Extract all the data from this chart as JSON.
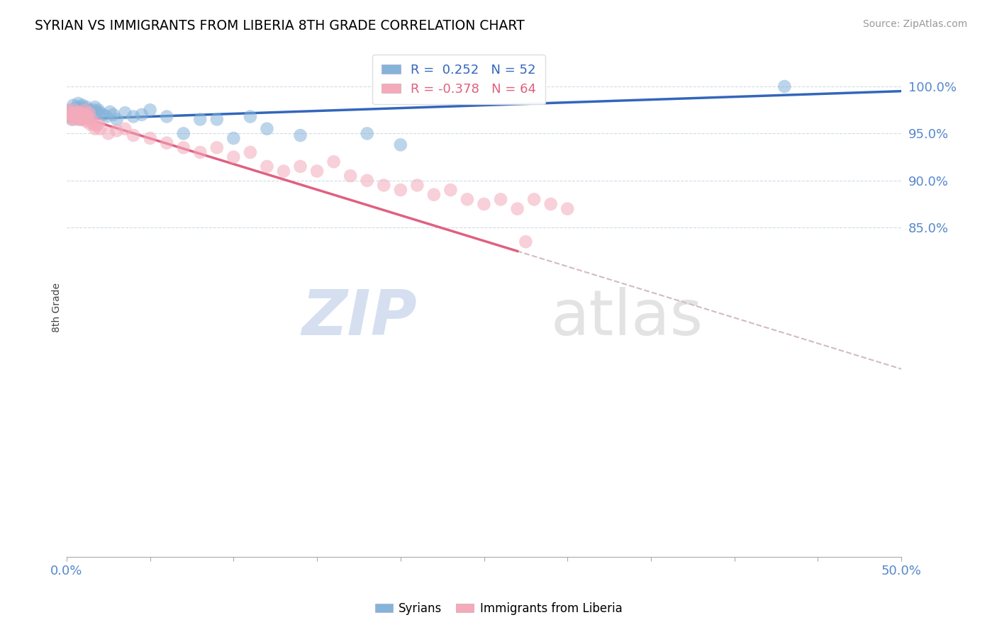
{
  "title": "SYRIAN VS IMMIGRANTS FROM LIBERIA 8TH GRADE CORRELATION CHART",
  "source_text": "Source: ZipAtlas.com",
  "ylabel": "8th Grade",
  "xlim": [
    0.0,
    50.0
  ],
  "ylim": [
    50.0,
    103.0
  ],
  "yticks": [
    85.0,
    90.0,
    95.0,
    100.0
  ],
  "xticks": [
    0.0,
    5.0,
    10.0,
    15.0,
    20.0,
    25.0,
    30.0,
    35.0,
    40.0,
    45.0,
    50.0
  ],
  "legend_R_syrian": "0.252",
  "legend_N_syrian": "52",
  "legend_R_liberia": "-0.378",
  "legend_N_liberia": "64",
  "blue_color": "#85B3D9",
  "pink_color": "#F4AABB",
  "trend_blue_color": "#3366BB",
  "trend_pink_color": "#E06080",
  "trend_gray_color": "#D4BBBB",
  "watermark_zip": "ZIP",
  "watermark_atlas": "atlas",
  "syrian_x": [
    0.15,
    0.2,
    0.25,
    0.3,
    0.35,
    0.4,
    0.45,
    0.5,
    0.55,
    0.6,
    0.65,
    0.7,
    0.75,
    0.8,
    0.85,
    0.9,
    0.95,
    1.0,
    1.05,
    1.1,
    1.15,
    1.2,
    1.25,
    1.3,
    1.35,
    1.4,
    1.5,
    1.6,
    1.7,
    1.8,
    1.9,
    2.0,
    2.2,
    2.4,
    2.6,
    2.8,
    3.0,
    3.5,
    4.0,
    4.5,
    5.0,
    6.0,
    7.0,
    8.0,
    9.0,
    10.0,
    11.0,
    12.0,
    14.0,
    18.0,
    20.0,
    43.0
  ],
  "syrian_y": [
    97.2,
    96.8,
    97.5,
    97.0,
    96.5,
    98.0,
    97.3,
    96.8,
    97.5,
    97.8,
    97.0,
    98.2,
    97.5,
    96.5,
    97.0,
    97.8,
    98.0,
    97.5,
    97.2,
    97.0,
    97.5,
    97.8,
    97.3,
    97.0,
    97.5,
    97.2,
    97.0,
    97.5,
    97.8,
    97.3,
    97.5,
    97.2,
    97.0,
    96.8,
    97.3,
    97.0,
    96.5,
    97.2,
    96.8,
    97.0,
    97.5,
    96.8,
    95.0,
    96.5,
    96.5,
    94.5,
    96.8,
    95.5,
    94.8,
    95.0,
    93.8,
    100.0
  ],
  "liberia_x": [
    0.1,
    0.15,
    0.2,
    0.25,
    0.3,
    0.35,
    0.4,
    0.45,
    0.5,
    0.55,
    0.6,
    0.65,
    0.7,
    0.75,
    0.8,
    0.85,
    0.9,
    0.95,
    1.0,
    1.05,
    1.1,
    1.15,
    1.2,
    1.25,
    1.3,
    1.35,
    1.4,
    1.5,
    1.6,
    1.7,
    1.8,
    1.9,
    2.0,
    2.5,
    3.0,
    3.5,
    4.0,
    5.0,
    6.0,
    7.0,
    8.0,
    9.0,
    10.0,
    11.0,
    12.0,
    13.0,
    14.0,
    15.0,
    16.0,
    17.0,
    18.0,
    19.0,
    20.0,
    21.0,
    22.0,
    23.0,
    24.0,
    25.0,
    26.0,
    27.0,
    27.5,
    28.0,
    29.0,
    30.0
  ],
  "liberia_y": [
    97.5,
    97.0,
    96.8,
    97.2,
    96.5,
    97.0,
    96.8,
    97.5,
    97.2,
    96.5,
    97.0,
    96.8,
    97.3,
    97.0,
    96.5,
    96.8,
    97.2,
    96.5,
    97.0,
    96.8,
    97.5,
    96.3,
    96.8,
    97.0,
    96.5,
    97.2,
    96.0,
    96.5,
    96.0,
    95.5,
    95.8,
    96.0,
    95.5,
    95.0,
    95.3,
    95.5,
    94.8,
    94.5,
    94.0,
    93.5,
    93.0,
    93.5,
    92.5,
    93.0,
    91.5,
    91.0,
    91.5,
    91.0,
    92.0,
    90.5,
    90.0,
    89.5,
    89.0,
    89.5,
    88.5,
    89.0,
    88.0,
    87.5,
    88.0,
    87.0,
    83.5,
    88.0,
    87.5,
    87.0
  ]
}
